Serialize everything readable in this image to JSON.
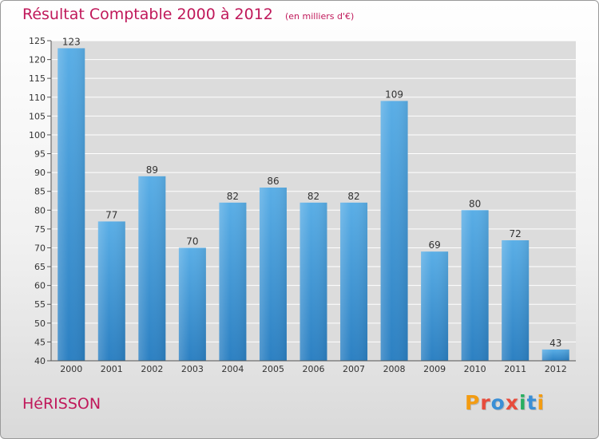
{
  "header": {
    "title": "Résultat Comptable 2000 à 2012",
    "unit": "(en milliers d'€)"
  },
  "footer": {
    "commune": "HéRISSON",
    "brand": "Proxiti"
  },
  "colors": {
    "title": "#c0185a",
    "bar_light": "#5aaee6",
    "bar_dark": "#2c80c2",
    "plot_background": "#dcdcdc",
    "grid": "#ffffff",
    "brand_letters": [
      "#f39c12",
      "#e74c3c",
      "#3a8fd6",
      "#e74c3c",
      "#27ae60",
      "#3a8fd6",
      "#f39c12"
    ]
  },
  "chart_data": {
    "type": "bar",
    "categories": [
      "2000",
      "2001",
      "2002",
      "2003",
      "2004",
      "2005",
      "2006",
      "2007",
      "2008",
      "2009",
      "2010",
      "2011",
      "2012"
    ],
    "values": [
      123,
      77,
      89,
      70,
      82,
      86,
      82,
      82,
      109,
      69,
      80,
      72,
      43
    ],
    "ylim": [
      40,
      125
    ],
    "yticks": [
      40,
      45,
      50,
      55,
      60,
      65,
      70,
      75,
      80,
      85,
      90,
      95,
      100,
      105,
      110,
      115,
      120,
      125
    ],
    "grid": true,
    "data_labels": true,
    "legend": "none"
  }
}
